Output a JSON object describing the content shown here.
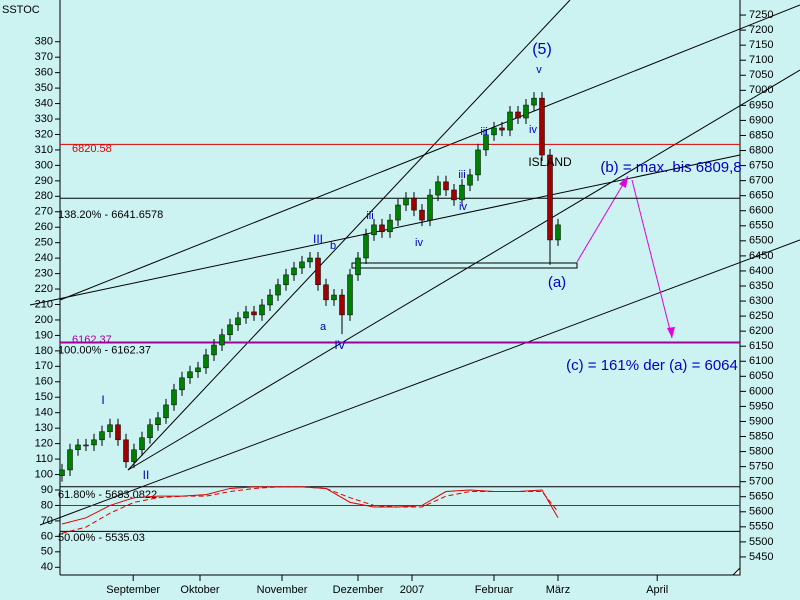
{
  "chart_data": {
    "type": "candlestick",
    "title": "SSTOC",
    "open": [
      5720,
      5739,
      5806,
      5822,
      5822,
      5839,
      5866,
      5889,
      5839,
      5766,
      5806,
      5846,
      5889,
      5912,
      5955,
      6005,
      6045,
      6065,
      6078,
      6121,
      6154,
      6188,
      6221,
      6244,
      6264,
      6254,
      6287,
      6320,
      6354,
      6387,
      6410,
      6430,
      6443,
      6354,
      6304,
      6320,
      6254,
      6387,
      6443,
      6520,
      6553,
      6530,
      6569,
      6619,
      6642,
      6602,
      6569,
      6652,
      6696,
      6669,
      6636,
      6685,
      6719,
      6802,
      6852,
      6875,
      6868,
      6928,
      6908,
      6951,
      6974,
      6785,
      6503
    ],
    "high": [
      5759,
      5826,
      5842,
      5842,
      5859,
      5886,
      5909,
      5909,
      5859,
      5826,
      5866,
      5909,
      5932,
      5975,
      6025,
      6065,
      6085,
      6098,
      6141,
      6174,
      6208,
      6241,
      6264,
      6284,
      6284,
      6307,
      6340,
      6374,
      6407,
      6430,
      6450,
      6463,
      6463,
      6374,
      6340,
      6340,
      6407,
      6463,
      6540,
      6573,
      6573,
      6589,
      6639,
      6662,
      6662,
      6622,
      6672,
      6716,
      6716,
      6689,
      6705,
      6739,
      6822,
      6872,
      6895,
      6895,
      6948,
      6948,
      6971,
      6994,
      6994,
      6805,
      6573
    ],
    "low": [
      5700,
      5719,
      5786,
      5802,
      5802,
      5819,
      5846,
      5819,
      5746,
      5746,
      5786,
      5826,
      5869,
      5892,
      5935,
      5985,
      6025,
      6045,
      6058,
      6101,
      6134,
      6168,
      6201,
      6224,
      6234,
      6234,
      6267,
      6300,
      6334,
      6367,
      6390,
      6410,
      6334,
      6284,
      6284,
      6190,
      6234,
      6367,
      6423,
      6500,
      6510,
      6510,
      6549,
      6599,
      6582,
      6549,
      6549,
      6632,
      6649,
      6616,
      6616,
      6665,
      6699,
      6782,
      6832,
      6848,
      6848,
      6888,
      6888,
      6931,
      6765,
      6420,
      6483
    ],
    "close": [
      5739,
      5806,
      5822,
      5822,
      5839,
      5866,
      5889,
      5839,
      5766,
      5806,
      5846,
      5889,
      5912,
      5955,
      6005,
      6045,
      6065,
      6078,
      6121,
      6154,
      6188,
      6221,
      6244,
      6264,
      6254,
      6287,
      6320,
      6354,
      6387,
      6410,
      6430,
      6443,
      6354,
      6304,
      6320,
      6254,
      6387,
      6443,
      6520,
      6553,
      6530,
      6569,
      6619,
      6642,
      6602,
      6569,
      6652,
      6696,
      6669,
      6636,
      6685,
      6719,
      6802,
      6852,
      6875,
      6868,
      6928,
      6908,
      6951,
      6974,
      6785,
      6503,
      6553
    ],
    "up_color": "#008000",
    "down_color": "#a00000",
    "xlim": [
      -0.25,
      84.75
    ],
    "xticks": [
      {
        "value": 8.9,
        "label": "September"
      },
      {
        "value": 17.25,
        "label": "Oktober"
      },
      {
        "value": 27.5,
        "label": "November"
      },
      {
        "value": 37,
        "label": "Dezember"
      },
      {
        "value": 43.75,
        "label": "2007"
      },
      {
        "value": 54,
        "label": "Februar"
      },
      {
        "value": 62,
        "label": "März"
      },
      {
        "value": 74.4,
        "label": "April"
      }
    ],
    "ylim": [
      5390,
      7300
    ],
    "yticks": [
      5450,
      5500,
      5550,
      5600,
      5650,
      5700,
      5750,
      5800,
      5850,
      5900,
      5950,
      6000,
      6050,
      6100,
      6150,
      6200,
      6250,
      6300,
      6350,
      6400,
      6450,
      6500,
      6550,
      6600,
      6650,
      6700,
      6750,
      6800,
      6850,
      6900,
      6950,
      7000,
      7050,
      7100,
      7150,
      7200,
      7250
    ],
    "y2lim": [
      35,
      407
    ],
    "y2ticks": [
      40,
      50,
      60,
      70,
      80,
      90,
      100,
      110,
      120,
      130,
      140,
      150,
      160,
      170,
      180,
      190,
      200,
      210,
      220,
      230,
      240,
      250,
      260,
      270,
      280,
      290,
      300,
      310,
      320,
      330,
      340,
      350,
      360,
      370,
      380
    ],
    "oscillator": {
      "x": [
        0,
        3,
        6,
        9,
        12,
        15,
        18,
        21,
        24,
        27,
        30,
        33,
        36,
        39,
        42,
        45,
        48,
        51,
        54,
        57,
        60,
        62
      ],
      "series": [
        {
          "color": "#e00000",
          "dash": false,
          "axis": "y2",
          "values": [
            68,
            72,
            80,
            85,
            86,
            86,
            87,
            91,
            92,
            92,
            92,
            91,
            82,
            79,
            79,
            80,
            89,
            90,
            89,
            89,
            90,
            72
          ]
        },
        {
          "color": "#e00000",
          "dash": true,
          "axis": "y2",
          "values": [
            62,
            66,
            75,
            82,
            85,
            86,
            86,
            89,
            91,
            92,
            92,
            91,
            85,
            80,
            79,
            79,
            86,
            89,
            89,
            89,
            89,
            76
          ]
        }
      ],
      "level": 80,
      "level_color": "#e00000"
    },
    "levels": [
      {
        "value": 6820.58,
        "label": "6820.58",
        "color": "#e00000"
      },
      {
        "value": 6641.6578,
        "label": "138.20% - 6641.6578",
        "color": "#000000"
      },
      {
        "value": 6162.37,
        "label": "6162.37",
        "label2": "100.00% - 6162.37",
        "color": "#a000a0"
      },
      {
        "value": 5683.0822,
        "label": "61.80% - 5683.0822",
        "color": "#000000"
      },
      {
        "value": 5535.03,
        "label": "50.00% - 5535.03",
        "color": "#000000"
      }
    ],
    "annotations": [
      "(5)",
      "v",
      "I",
      "II",
      "III",
      "IV",
      "a",
      "b",
      "iii",
      "iv",
      "iii",
      "iv",
      "iii",
      "iv",
      "ISLAND",
      "(a)",
      "(b) = max. bis 6809,8",
      "(c) = 161% der (a) = 6064"
    ]
  }
}
